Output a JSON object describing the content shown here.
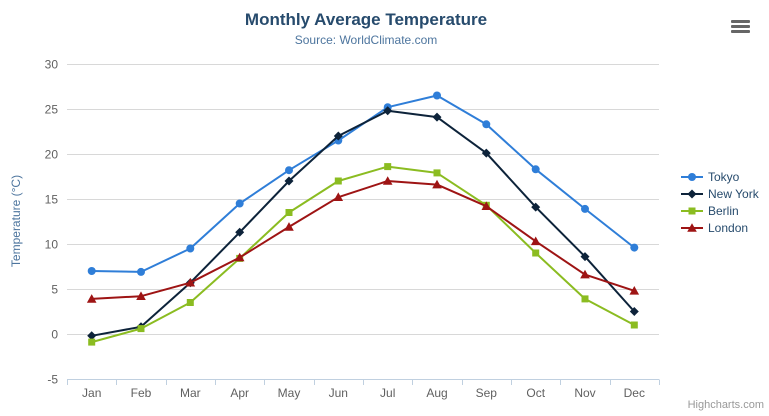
{
  "header": {
    "title": "Monthly Average Temperature",
    "subtitle": "Source: WorldClimate.com"
  },
  "credits": {
    "label": "Highcharts.com"
  },
  "menu": {
    "icon": "hamburger-icon"
  },
  "colors": {
    "title_text": "#274b6d",
    "subtitle_text": "#4d759e",
    "axis_label_text": "#606060",
    "grid_line": "#d8d8d8",
    "axis_line": "#c0d0e0",
    "credits_text": "#999999",
    "menu_icon": "#666666"
  },
  "chart_data": {
    "type": "line",
    "title": "Monthly Average Temperature",
    "subtitle": "Source: WorldClimate.com",
    "xlabel": "",
    "ylabel": "Temperature (°C)",
    "ylim": [
      -5,
      30
    ],
    "ytick_step": 5,
    "grid": true,
    "legend_position": "right",
    "categories": [
      "Jan",
      "Feb",
      "Mar",
      "Apr",
      "May",
      "Jun",
      "Jul",
      "Aug",
      "Sep",
      "Oct",
      "Nov",
      "Dec"
    ],
    "series": [
      {
        "name": "Tokyo",
        "color": "#2f7ed8",
        "marker": "circle",
        "values": [
          7.0,
          6.9,
          9.5,
          14.5,
          18.2,
          21.5,
          25.2,
          26.5,
          23.3,
          18.3,
          13.9,
          9.6
        ]
      },
      {
        "name": "New York",
        "color": "#0d233a",
        "marker": "diamond",
        "values": [
          -0.2,
          0.8,
          5.7,
          11.3,
          17.0,
          22.0,
          24.8,
          24.1,
          20.1,
          14.1,
          8.6,
          2.5
        ]
      },
      {
        "name": "Berlin",
        "color": "#8bbc21",
        "marker": "square",
        "values": [
          -0.9,
          0.6,
          3.5,
          8.4,
          13.5,
          17.0,
          18.6,
          17.9,
          14.3,
          9.0,
          3.9,
          1.0
        ]
      },
      {
        "name": "London",
        "color": "#9e1414",
        "marker": "triangle",
        "values": [
          3.9,
          4.2,
          5.7,
          8.5,
          11.9,
          15.2,
          17.0,
          16.6,
          14.2,
          10.3,
          6.6,
          4.8
        ]
      }
    ]
  }
}
